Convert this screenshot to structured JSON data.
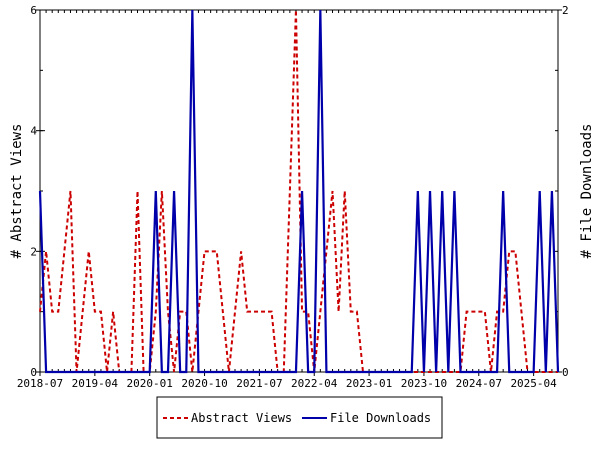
{
  "chart_data": {
    "type": "line",
    "title": "",
    "x_tick_labels": [
      "2018-07",
      "2019-04",
      "2020-01",
      "2020-10",
      "2021-07",
      "2022-04",
      "2023-01",
      "2023-10",
      "2024-07",
      "2025-04"
    ],
    "y_left": {
      "label": "# Abstract Views",
      "ylim": [
        0,
        6
      ],
      "ticks": [
        "0",
        "2",
        "4",
        "6"
      ]
    },
    "y_right": {
      "label": "# File Downloads",
      "ylim": [
        0,
        2
      ],
      "ticks": [
        "0",
        "2"
      ]
    },
    "x_count": 86,
    "series": [
      {
        "name": "Abstract Views",
        "axis": "left",
        "color": "#cc0000",
        "style": "dashed",
        "values": [
          1,
          2,
          1,
          1,
          2,
          3,
          0,
          1,
          2,
          1,
          1,
          0,
          1,
          0,
          0,
          0,
          3,
          0,
          0,
          1,
          3,
          1,
          0,
          1,
          1,
          0,
          1,
          2,
          2,
          2,
          1,
          0,
          1,
          2,
          1,
          1,
          1,
          1,
          1,
          0,
          0,
          3,
          6,
          1,
          1,
          0,
          1,
          2,
          3,
          1,
          3,
          1,
          1,
          0,
          0,
          0,
          0,
          0,
          0,
          0,
          0,
          0,
          0,
          0,
          0,
          0,
          0,
          0,
          0,
          0,
          1,
          1,
          1,
          1,
          0,
          1,
          1,
          2,
          2,
          1,
          0,
          0,
          0,
          0,
          0,
          0
        ]
      },
      {
        "name": "File Downloads",
        "axis": "right",
        "color": "#0000aa",
        "style": "solid",
        "values": [
          1,
          0,
          0,
          0,
          0,
          0,
          0,
          0,
          0,
          0,
          0,
          0,
          0,
          0,
          0,
          0,
          0,
          0,
          0,
          1,
          0,
          0,
          1,
          0,
          0,
          2,
          0,
          0,
          0,
          0,
          0,
          0,
          0,
          0,
          0,
          0,
          0,
          0,
          0,
          0,
          0,
          0,
          0,
          1,
          0,
          0,
          2,
          0,
          0,
          0,
          0,
          0,
          0,
          0,
          0,
          0,
          0,
          0,
          0,
          0,
          0,
          0,
          1,
          0,
          1,
          0,
          1,
          0,
          1,
          0,
          0,
          0,
          0,
          0,
          0,
          0,
          1,
          0,
          0,
          0,
          0,
          0,
          1,
          0,
          1,
          0
        ]
      }
    ],
    "legend": {
      "placement": "bottom-center"
    }
  }
}
